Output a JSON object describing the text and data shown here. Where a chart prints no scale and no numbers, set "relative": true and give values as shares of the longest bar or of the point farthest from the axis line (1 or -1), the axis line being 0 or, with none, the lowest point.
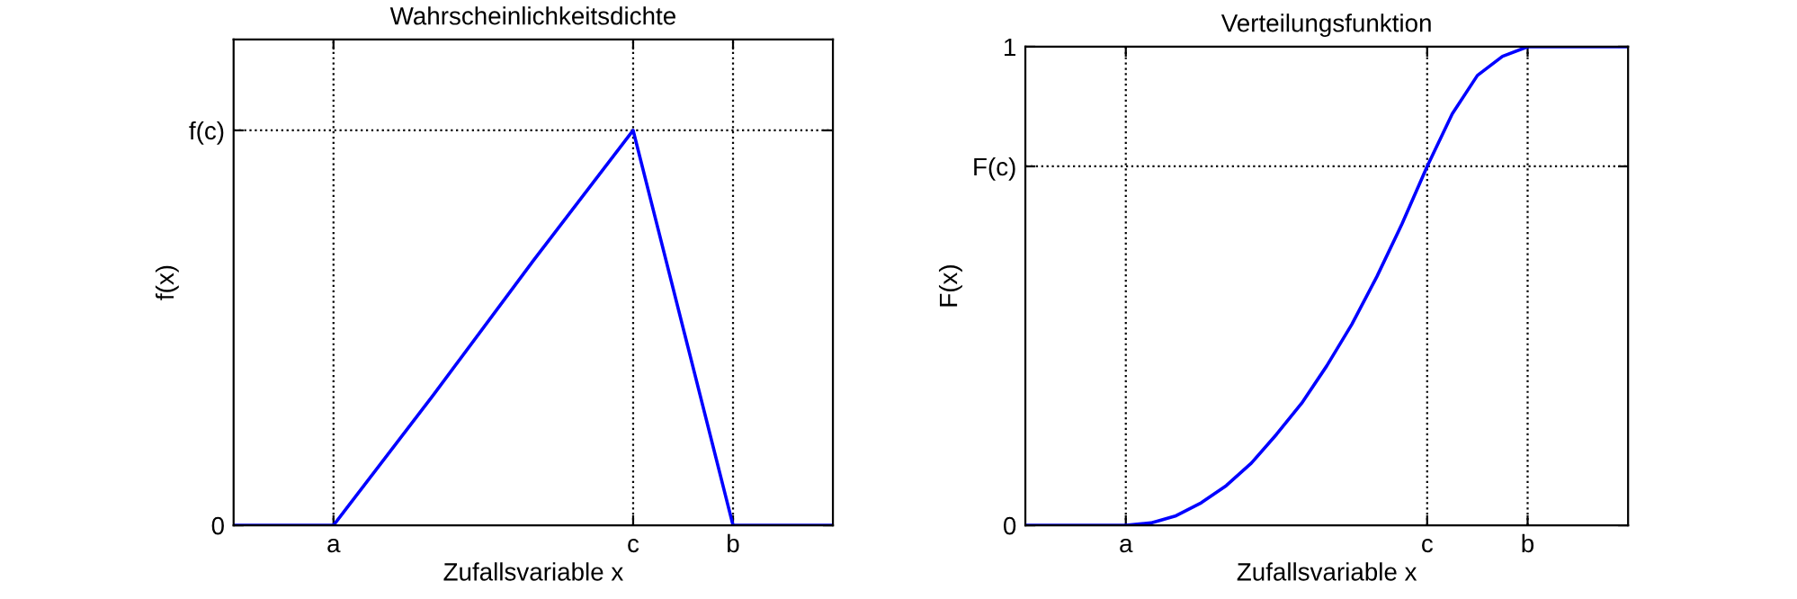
{
  "chart_data": [
    {
      "type": "line",
      "title": "Wahrscheinlichkeitsdichte",
      "xlabel": "Zufallsvariable x",
      "ylabel": "f(x)",
      "categories": [
        null,
        "a",
        null,
        null,
        "c",
        "b",
        null
      ],
      "series": [
        {
          "color": "#0000ff",
          "values": [
            0,
            0,
            0.33,
            0.67,
            1,
            0,
            0
          ]
        }
      ],
      "relative": true,
      "annotations": [
        "0",
        "f(c)"
      ],
      "grid": true,
      "line_style": "solid",
      "marker": "none",
      "legend": false
    },
    {
      "type": "line",
      "title": "Verteilungsfunktion",
      "xlabel": "Zufallsvariable x",
      "ylabel": "F(x)",
      "categories": [
        null,
        null,
        null,
        null,
        "a",
        null,
        null,
        null,
        null,
        null,
        null,
        null,
        null,
        null,
        null,
        null,
        "c",
        null,
        null,
        null,
        "b",
        null,
        null,
        null,
        null
      ],
      "series": [
        {
          "color": "#0000ff",
          "values": [
            0,
            0,
            0,
            0,
            0,
            0.005,
            0.02,
            0.047,
            0.083,
            0.13,
            0.19,
            0.255,
            0.333,
            0.42,
            0.52,
            0.63,
            0.75,
            0.86,
            0.94,
            0.98,
            1,
            1,
            1,
            1,
            1
          ]
        }
      ],
      "ylim": [
        0,
        1
      ],
      "yticks": [
        0,
        {
          "value": 0.75,
          "label": "F(c)"
        },
        1
      ],
      "grid": true,
      "line_style": "solid",
      "marker": "none",
      "legend": false
    }
  ]
}
